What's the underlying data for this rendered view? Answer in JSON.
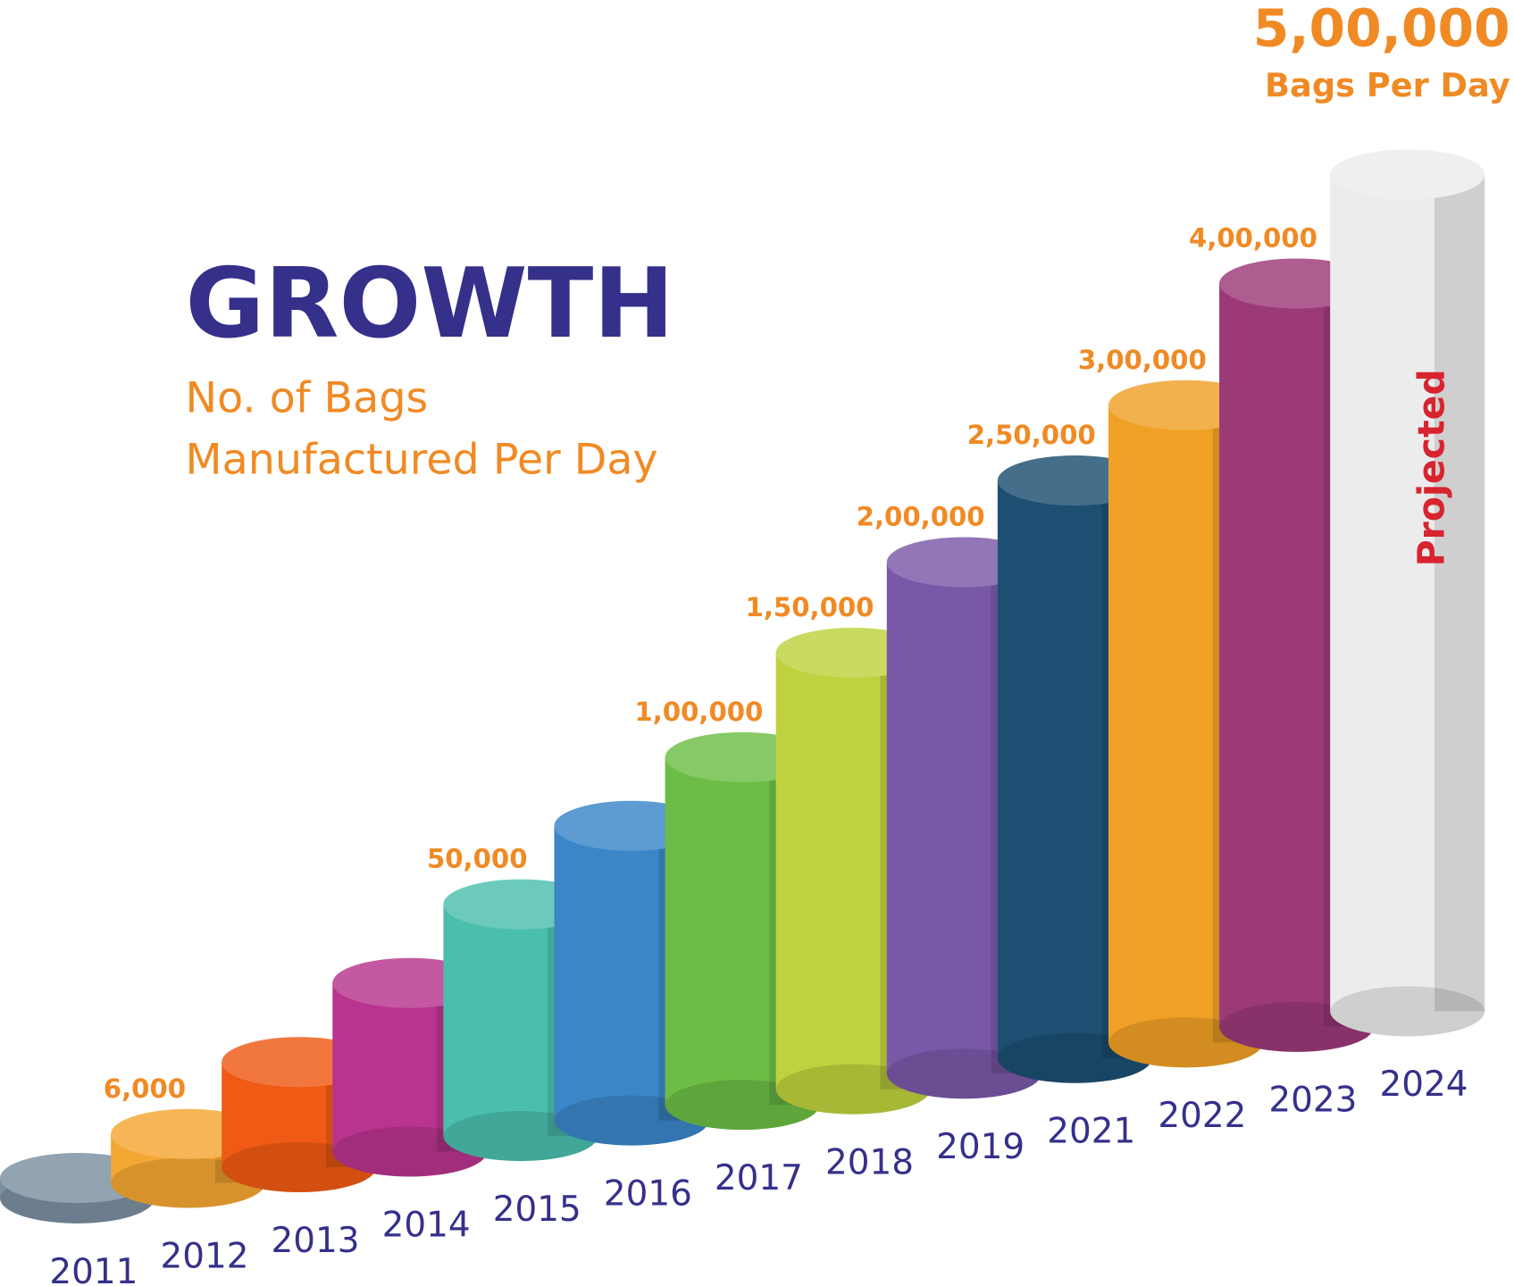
{
  "chart_data": {
    "type": "cylinder-bar",
    "title": "GROWTH",
    "subtitle": [
      "No. of Bags",
      "Manufactured Per Day"
    ],
    "categories": [
      "2011",
      "2012",
      "2013",
      "2014",
      "2015",
      "2016",
      "2017",
      "2018",
      "2019",
      "2021",
      "2022",
      "2023",
      "2024"
    ],
    "values": [
      3000,
      6000,
      15000,
      30000,
      50000,
      75000,
      100000,
      150000,
      200000,
      250000,
      300000,
      400000,
      500000
    ],
    "value_labels": [
      null,
      "6,000",
      null,
      null,
      "50,000",
      null,
      "1,00,000",
      "1,50,000",
      "2,00,000",
      "2,50,000",
      "3,00,000",
      "4,00,000",
      "5,00,000"
    ],
    "colors": [
      "#7b8fa1",
      "#f5a733",
      "#f05a14",
      "#b8348e",
      "#4bbfad",
      "#3a86c8",
      "#6cbd45",
      "#bfd13e",
      "#7a58a8",
      "#1d4f72",
      "#f0a025",
      "#9c3a78",
      "#ececec"
    ],
    "annotations": [
      "Bags Per Day",
      "Projected"
    ]
  }
}
